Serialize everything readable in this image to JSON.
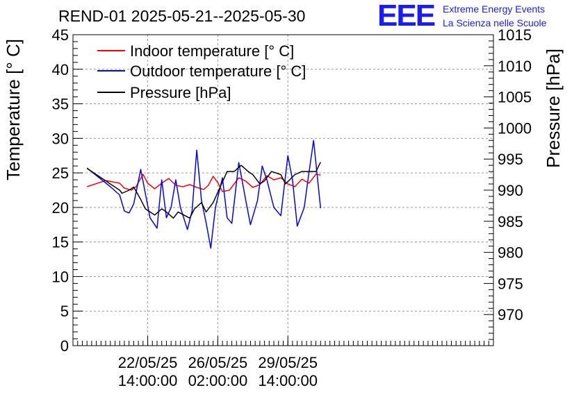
{
  "title": "REND-01 2025-05-21--2025-05-30",
  "logo": {
    "mark": "EEE",
    "line1": "Extreme Energy Events",
    "line2": "La Scienza nelle Scuole",
    "color": "#1a1aff"
  },
  "chart_data": {
    "type": "line",
    "ylabel": "Temperature [° C]",
    "y2label": "Pressure [hPa]",
    "ylim": [
      0,
      45
    ],
    "y2lim": [
      965,
      1015
    ],
    "yticks": [
      "0",
      "5",
      "10",
      "15",
      "20",
      "25",
      "30",
      "35",
      "40",
      "45"
    ],
    "y2ticks": [
      "970",
      "975",
      "980",
      "985",
      "990",
      "995",
      "1000",
      "1005",
      "1010",
      "1015"
    ],
    "xlim": [
      0,
      9
    ],
    "xticks": [
      {
        "x": 1.6,
        "date": "22/05/25",
        "time": "14:00:00"
      },
      {
        "x": 3.1,
        "date": "26/05/25",
        "time": "02:00:00"
      },
      {
        "x": 4.6,
        "date": "29/05/25",
        "time": "14:00:00"
      }
    ],
    "grid": true,
    "legend_position": "top-left",
    "series": [
      {
        "name": "Indoor temperature [° C]",
        "axis": "left",
        "color": "#ff0000",
        "x": [
          0.3,
          0.7,
          1.0,
          1.1,
          1.25,
          1.35,
          1.5,
          1.6,
          1.75,
          1.9,
          2.05,
          2.2,
          2.35,
          2.5,
          2.65,
          2.8,
          2.9,
          3.0,
          3.1,
          3.2,
          3.35,
          3.55,
          3.7,
          3.85,
          4.0,
          4.15,
          4.3,
          4.45,
          4.6,
          4.75,
          4.9,
          5.05,
          5.2,
          5.3
        ],
        "y": [
          23.0,
          23.9,
          23.5,
          22.8,
          22.5,
          23.0,
          24.8,
          23.5,
          22.7,
          23.5,
          24.2,
          23.2,
          23.0,
          23.3,
          22.9,
          22.6,
          23.2,
          24.5,
          23.6,
          22.3,
          22.5,
          24.3,
          23.8,
          22.9,
          23.3,
          24.6,
          24.0,
          24.3,
          23.4,
          23.0,
          24.1,
          23.5,
          24.8,
          24.7
        ]
      },
      {
        "name": "Outdoor temperature [° C]",
        "axis": "left",
        "color": "#0000ff",
        "x": [
          0.3,
          0.8,
          1.0,
          1.1,
          1.2,
          1.3,
          1.45,
          1.55,
          1.65,
          1.8,
          1.9,
          2.0,
          2.1,
          2.2,
          2.3,
          2.45,
          2.55,
          2.65,
          2.75,
          2.85,
          2.95,
          3.05,
          3.2,
          3.3,
          3.4,
          3.55,
          3.7,
          3.8,
          3.95,
          4.05,
          4.15,
          4.3,
          4.45,
          4.6,
          4.7,
          4.8,
          4.95,
          5.05,
          5.15,
          5.3
        ],
        "y": [
          25.7,
          23.0,
          21.8,
          19.5,
          19.2,
          20.5,
          25.5,
          22.0,
          18.5,
          17.0,
          24.0,
          18.5,
          20.0,
          24.0,
          20.0,
          16.8,
          19.5,
          28.3,
          21.0,
          17.8,
          14.1,
          20.0,
          24.3,
          18.5,
          17.7,
          26.5,
          21.0,
          17.5,
          21.0,
          26.0,
          24.0,
          20.0,
          18.8,
          27.5,
          24.0,
          17.3,
          20.0,
          25.0,
          29.7,
          19.9
        ]
      },
      {
        "name": "Pressure [hPa]",
        "axis": "right",
        "color": "#000000",
        "x": [
          0.3,
          1.0,
          1.05,
          1.2,
          1.3,
          1.45,
          1.55,
          1.75,
          1.9,
          2.0,
          2.15,
          2.25,
          2.5,
          2.6,
          2.75,
          2.85,
          3.0,
          3.15,
          3.3,
          3.45,
          3.6,
          3.75,
          3.85,
          4.0,
          4.1,
          4.25,
          4.45,
          4.55,
          4.75,
          4.9,
          5.05,
          5.2,
          5.3
        ],
        "y": [
          993.5,
          990.0,
          989.5,
          990.0,
          990.5,
          988.5,
          987.0,
          986.0,
          987.0,
          986.5,
          985.5,
          986.5,
          985.5,
          987.0,
          988.0,
          986.5,
          988.0,
          990.5,
          993.0,
          993.0,
          994.0,
          993.0,
          992.5,
          991.0,
          991.5,
          993.0,
          992.5,
          991.0,
          992.5,
          993.0,
          993.0,
          993.0,
          994.5
        ]
      }
    ]
  }
}
